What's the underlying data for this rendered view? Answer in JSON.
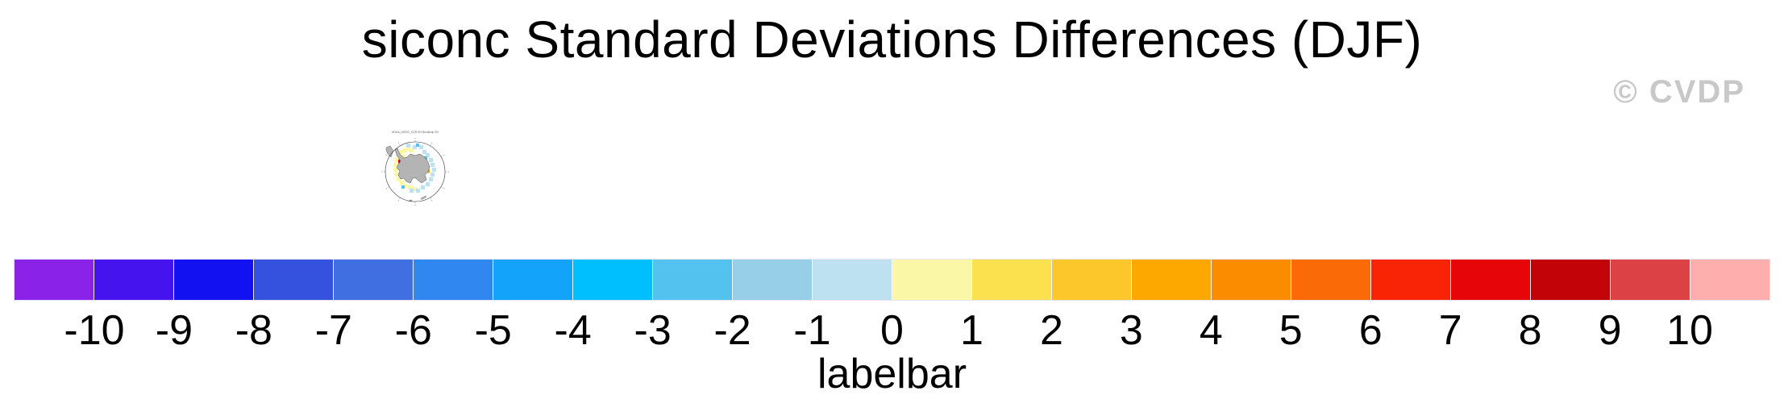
{
  "title": "siconc Standard Deviations Differences (DJF)",
  "watermark": {
    "text": "© CVDP",
    "color": "#c8c8c8"
  },
  "map_panel": {
    "title": "NOAA_NSIDC_CDR SH Bootstrap SH",
    "projection": "south polar stereographic",
    "colors": {
      "land": "#b4b4b4",
      "coast": "#4a4a4a",
      "positive_light": "#FAF7A6",
      "negative_light": "#BDE1F1",
      "negative_medium": "#54C2EF",
      "positive_red_spot": "#E60508",
      "positive_orange_spot": "#FCA800",
      "grid": "#888888"
    }
  },
  "colorbar": {
    "label": "labelbar",
    "tick_values": [
      "-10",
      "-9",
      "-8",
      "-7",
      "-6",
      "-5",
      "-4",
      "-3",
      "-2",
      "-1",
      "0",
      "1",
      "2",
      "3",
      "4",
      "5",
      "6",
      "7",
      "8",
      "9",
      "10"
    ],
    "colors": [
      "#8A22E8",
      "#4513EE",
      "#1111F2",
      "#3452DE",
      "#3F6FE0",
      "#2F87EF",
      "#14A3FA",
      "#00BFFF",
      "#54C2EF",
      "#97CFE9",
      "#BDE1F1",
      "#FAF7A6",
      "#FCE14E",
      "#FCC72A",
      "#FCA800",
      "#FB8C00",
      "#FA6A06",
      "#F82405",
      "#E60508",
      "#C20409",
      "#DC4146",
      "#FFAEAE"
    ]
  },
  "chart_data": {
    "type": "heatmap",
    "title": "siconc Standard Deviations Differences (DJF)",
    "colorbar_label": "labelbar",
    "levels": [
      -10,
      -9,
      -8,
      -7,
      -6,
      -5,
      -4,
      -3,
      -2,
      -1,
      0,
      1,
      2,
      3,
      4,
      5,
      6,
      7,
      8,
      9,
      10
    ],
    "colors": [
      "#8A22E8",
      "#4513EE",
      "#1111F2",
      "#3452DE",
      "#3F6FE0",
      "#2F87EF",
      "#14A3FA",
      "#00BFFF",
      "#54C2EF",
      "#97CFE9",
      "#BDE1F1",
      "#FAF7A6",
      "#FCE14E",
      "#FCC72A",
      "#FCA800",
      "#FB8C00",
      "#FA6A06",
      "#F82405",
      "#E60508",
      "#C20409",
      "#DC4146",
      "#FFAEAE"
    ],
    "legend_position": "bottom",
    "panels": [
      {
        "title": "NOAA_NSIDC_CDR SH Bootstrap SH",
        "projection": "south polar stereographic",
        "content_summary": "Antarctic continent in gray surrounded by mostly weak differences: pale yellow (0 to +1) patches to the west/left, pale blue (-1 to 0) patches to the north/east, one small red (~+6) spot near the Antarctic Peninsula and one small orange (~+4) spot on the eastern side"
      }
    ]
  }
}
